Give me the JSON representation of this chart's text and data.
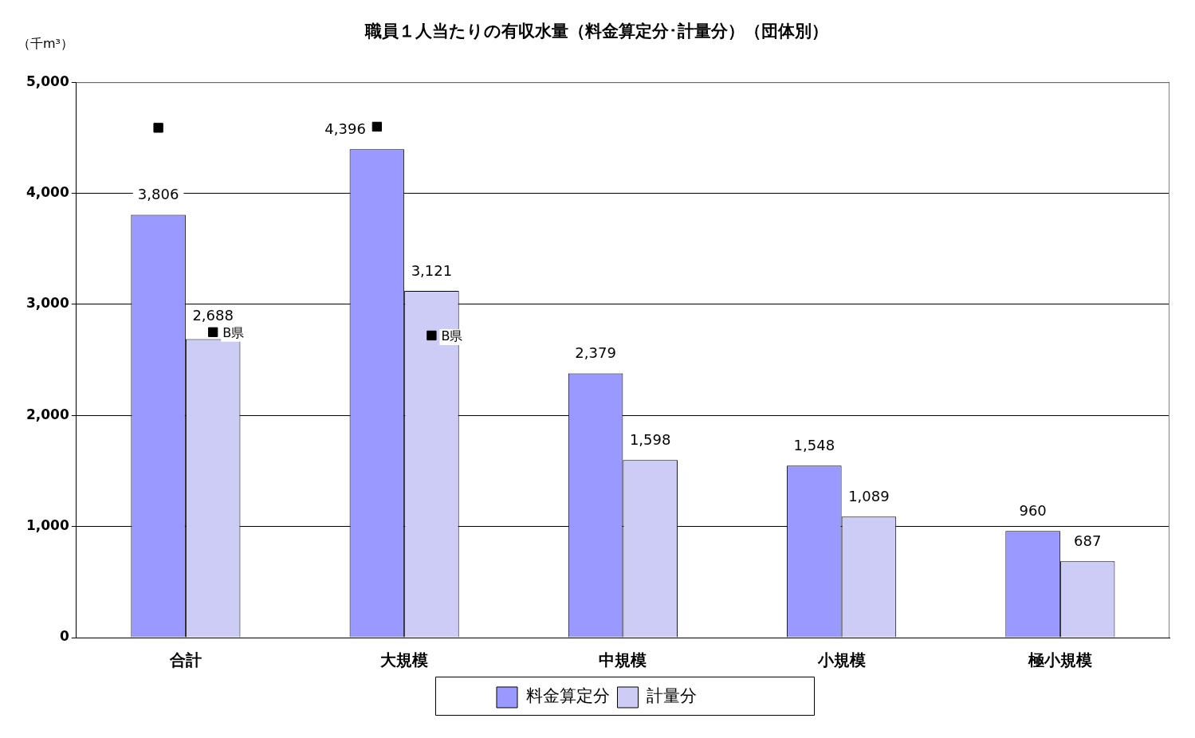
{
  "chart_data": {
    "type": "bar",
    "title": "職員１人当たりの有収水量（料金算定分･計量分）（団体別）",
    "ylabel": "（千m³）",
    "categories": [
      "合計",
      "大規模",
      "中規模",
      "小規模",
      "極小規模"
    ],
    "series": [
      {
        "name": "料金算定分",
        "color": "#9999ff",
        "values": [
          3806,
          4396,
          2379,
          1548,
          960
        ],
        "value_labels": [
          "3,806",
          "4,396",
          "2,379",
          "1,548",
          "960"
        ]
      },
      {
        "name": "計量分",
        "color": "#ccccf6",
        "values": [
          2688,
          3121,
          1598,
          1089,
          687
        ],
        "value_labels": [
          "2,688",
          "3,121",
          "1,598",
          "1,089",
          "687"
        ]
      },
      {
        "type": "scatter",
        "color": "#000000",
        "x": [
          "合計",
          "大規模"
        ],
        "values": [
          4590,
          4600
        ]
      },
      {
        "type": "scatter",
        "color": "#000000",
        "x": [
          "合計",
          "大規模"
        ],
        "values": [
          2750,
          2720
        ]
      }
    ],
    "annotations": [
      {
        "text": "B県",
        "x": "合計",
        "y": 2750
      },
      {
        "text": "B県",
        "x": "大規模",
        "y": 2720
      }
    ],
    "ylim": [
      0,
      5000
    ],
    "yticks": [
      {
        "value": 0,
        "label": "0"
      },
      {
        "value": 1000,
        "label": "1,000"
      },
      {
        "value": 2000,
        "label": "2,000"
      },
      {
        "value": 3000,
        "label": "3,000"
      },
      {
        "value": 4000,
        "label": "4,000"
      },
      {
        "value": 5000,
        "label": "5,000"
      }
    ],
    "grid": "y",
    "legend": "bottom",
    "marker": "square"
  }
}
